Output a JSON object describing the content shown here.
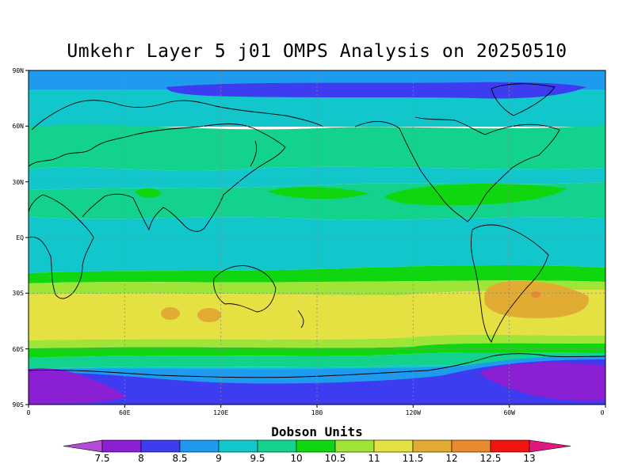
{
  "title": "Umkehr Layer 5 j01 OMPS Analysis on 20250510",
  "lat_ticks": [
    "90N",
    "60N",
    "30N",
    "EQ",
    "30S",
    "60S",
    "90S"
  ],
  "lon_ticks": [
    "0",
    "60E",
    "120E",
    "180",
    "120W",
    "60W",
    "0"
  ],
  "colorbar": {
    "title": "Dobson Units",
    "labels": [
      "7.5",
      "8",
      "8.5",
      "9",
      "9.5",
      "10",
      "10.5",
      "11",
      "11.5",
      "12",
      "12.5",
      "13"
    ],
    "colors": [
      "#b34bd9",
      "#8b1fd3",
      "#3d3cf0",
      "#1e9bef",
      "#12c7cc",
      "#13d28d",
      "#10d610",
      "#9ee537",
      "#e5e142",
      "#e2ac32",
      "#ea8a2f",
      "#f2150f",
      "#e0187d"
    ]
  },
  "chart_data": {
    "type": "heatmap",
    "title": "Umkehr Layer 5 j01 OMPS Analysis on 20250510",
    "units": "Dobson Units",
    "xlabel": "",
    "ylabel": "",
    "lon_range": [
      0,
      360
    ],
    "lat_range": [
      -90,
      90
    ],
    "zonal_bands_lat_top_to_bottom": [
      {
        "lat_from": 90,
        "lat_to": 80,
        "value_DU": 8.75
      },
      {
        "lat_from": 80,
        "lat_to": 70,
        "value_DU": 8.25
      },
      {
        "lat_from": 70,
        "lat_to": 60,
        "value_DU": 9.25
      },
      {
        "lat_from": 60,
        "lat_to": 45,
        "value_DU": 9.75
      },
      {
        "lat_from": 45,
        "lat_to": 35,
        "value_DU": 9.75
      },
      {
        "lat_from": 35,
        "lat_to": 20,
        "value_DU": 10.25
      },
      {
        "lat_from": 20,
        "lat_to": -15,
        "value_DU": 9.75
      },
      {
        "lat_from": -15,
        "lat_to": -22,
        "value_DU": 10.25
      },
      {
        "lat_from": -22,
        "lat_to": -28,
        "value_DU": 10.75
      },
      {
        "lat_from": -28,
        "lat_to": -55,
        "value_DU": 11.25
      },
      {
        "lat_from": -55,
        "lat_to": -60,
        "value_DU": 10.75
      },
      {
        "lat_from": -60,
        "lat_to": -63,
        "value_DU": 10.25
      },
      {
        "lat_from": -63,
        "lat_to": -67,
        "value_DU": 9.75
      },
      {
        "lat_from": -67,
        "lat_to": -75,
        "value_DU": 8.75
      },
      {
        "lat_from": -75,
        "lat_to": -90,
        "value_DU": 8.25
      }
    ],
    "features": [
      {
        "name": "north-polar-low",
        "lon": [
          60,
          300
        ],
        "lat": [
          72,
          85
        ],
        "value_DU": 8.25
      },
      {
        "name": "pacific-subtropical-high-north",
        "lon": [
          150,
          180
        ],
        "lat": [
          20,
          30
        ],
        "value_DU": 10.25
      },
      {
        "name": "atlantic-subtropical-high-north",
        "lon": [
          235,
          285
        ],
        "lat": [
          15,
          30
        ],
        "value_DU": 10.25
      },
      {
        "name": "south-atlantic-max",
        "lon": [
          290,
          350
        ],
        "lat": [
          -42,
          -25
        ],
        "value_DU": 11.75
      },
      {
        "name": "south-atlantic-peak",
        "lon": [
          311,
          316
        ],
        "lat": [
          -32,
          -30
        ],
        "value_DU": 12.25
      },
      {
        "name": "indian-ocean-max-1",
        "lon": [
          65,
          75
        ],
        "lat": [
          -45,
          -38
        ],
        "value_DU": 11.75
      },
      {
        "name": "indian-ocean-max-2",
        "lon": [
          80,
          96
        ],
        "lat": [
          -46,
          -39
        ],
        "value_DU": 11.75
      },
      {
        "name": "antarctic-low-west",
        "lon": [
          0,
          50
        ],
        "lat": [
          -90,
          -72
        ],
        "value_DU": 7.75
      },
      {
        "name": "antarctic-low-east",
        "lon": [
          288,
          360
        ],
        "lat": [
          -85,
          -67
        ],
        "value_DU": 7.75
      }
    ]
  }
}
